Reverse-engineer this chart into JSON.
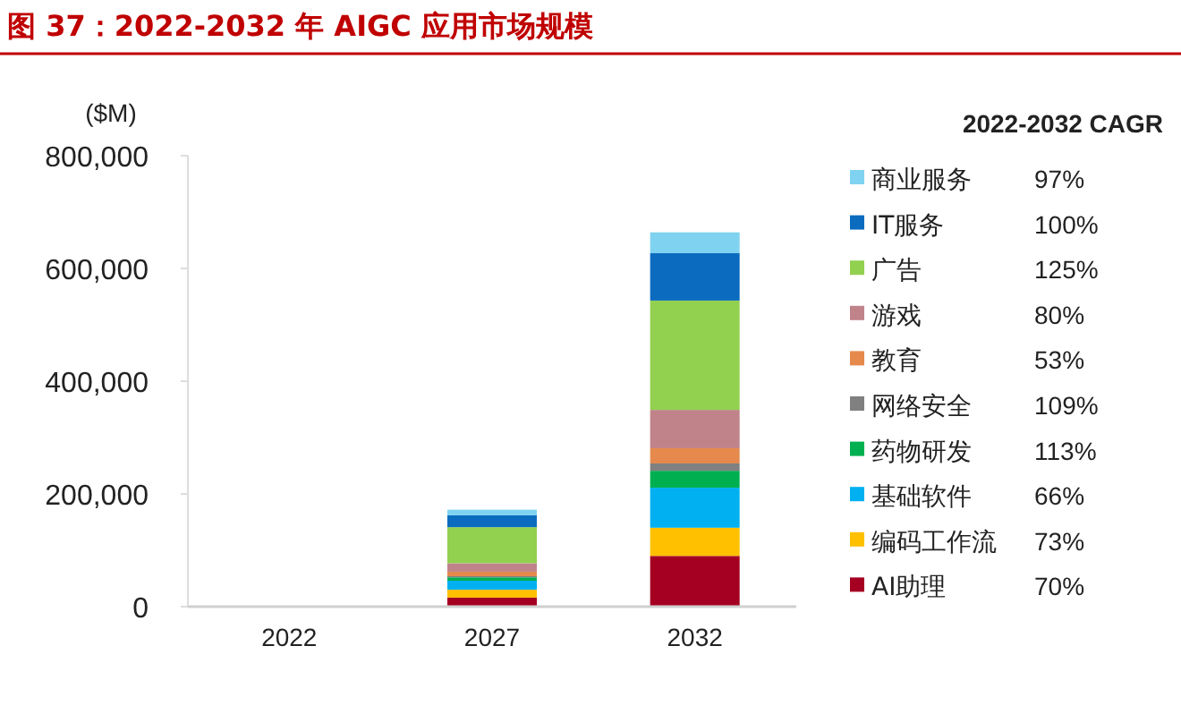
{
  "chart_data": {
    "type": "bar",
    "title": "图 37：2022-2032 年 AIGC 应用市场规模",
    "ylabel": "($M)",
    "legend_title": "2022-2032 CAGR",
    "stacked": true,
    "legend": "right",
    "categories": [
      "2022",
      "2027",
      "2032"
    ],
    "ylim": [
      0,
      800000
    ],
    "yticks": [
      0,
      {
        "value": 200000,
        "label": "200,000"
      },
      {
        "value": 400000,
        "label": "400,000"
      },
      {
        "value": 600000,
        "label": "600,000"
      },
      {
        "value": 800000,
        "label": "800,000"
      }
    ],
    "series": [
      {
        "name": "AI助理",
        "color": "#a50021",
        "values": [
          0,
          16000,
          90000
        ]
      },
      {
        "name": "编码工作流",
        "color": "#ffc000",
        "values": [
          0,
          14000,
          50000
        ]
      },
      {
        "name": "基础软件",
        "color": "#00b0f0",
        "values": [
          0,
          16000,
          71000
        ]
      },
      {
        "name": "药物研发",
        "color": "#00b050",
        "values": [
          0,
          6000,
          30000
        ]
      },
      {
        "name": "网络安全",
        "color": "#808080",
        "values": [
          0,
          2000,
          13000
        ]
      },
      {
        "name": "教育",
        "color": "#e58a4c",
        "values": [
          0,
          8000,
          27000
        ]
      },
      {
        "name": "游戏",
        "color": "#c0838a",
        "values": [
          0,
          15000,
          68000
        ]
      },
      {
        "name": "广告",
        "color": "#92d050",
        "values": [
          0,
          64000,
          194000
        ]
      },
      {
        "name": "IT服务",
        "color": "#0b6bbf",
        "values": [
          0,
          21000,
          84000
        ]
      },
      {
        "name": "商业服务",
        "color": "#7fd3f0",
        "values": [
          0,
          10000,
          37000
        ]
      }
    ],
    "annotations": [
      "70%",
      "73%",
      "66%",
      "113%",
      "109%",
      "53%",
      "80%",
      "125%",
      "100%",
      "97%"
    ]
  }
}
